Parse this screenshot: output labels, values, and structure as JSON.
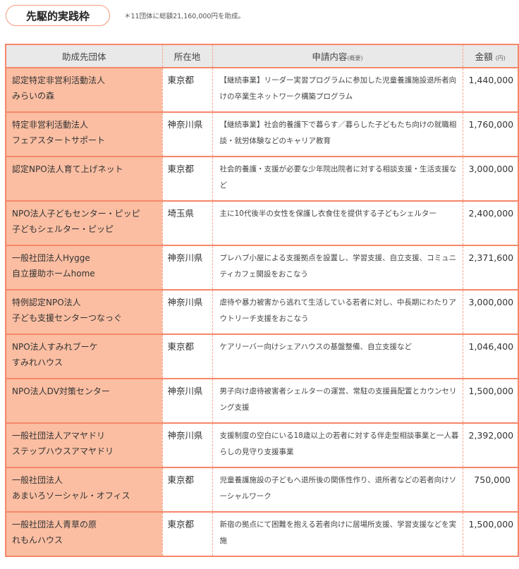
{
  "header": {
    "title": "先駆的実践枠",
    "note": "＊11団体に総額21,160,000円を助成。"
  },
  "colors": {
    "accent": "#f5876a",
    "org_bg": "#fbbea2",
    "header_bg": "#e9e9e9"
  },
  "table": {
    "columns": [
      "助成先団体",
      "所在地",
      "申請内容",
      "金額"
    ],
    "column_notes": {
      "2": "(概要)",
      "3": "(円)"
    },
    "rows": [
      {
        "org": [
          "認定特定非営利活動法人",
          "みらいの森"
        ],
        "location": "東京都",
        "description": "【継続事業】リーダー実習プログラムに参加した児童養護施設退所者向けの卒業生ネットワーク構築プログラム",
        "amount": "1,440,000"
      },
      {
        "org": [
          "特定非営利活動法人",
          "フェアスタートサポート"
        ],
        "location": "神奈川県",
        "description": "【継続事業】社会的養護下で暮らす／暮らした子どもたち向けの就職相談・就労体験などのキャリア教育",
        "amount": "1,760,000"
      },
      {
        "org": [
          "認定NPO法人育て上げネット"
        ],
        "location": "東京都",
        "description": "社会的養護・支援が必要な少年院出院者に対する相談支援・生活支援など",
        "amount": "3,000,000"
      },
      {
        "org": [
          "NPO法人子どもセンター・ピッピ",
          "子どもシェルター・ピッピ"
        ],
        "location": "埼玉県",
        "description": "主に10代後半の女性を保護し衣食住を提供する子どもシェルター",
        "amount": "2,400,000"
      },
      {
        "org": [
          "一般社団法人Hygge",
          "自立援助ホームhome"
        ],
        "location": "神奈川県",
        "description": "プレハブ小屋による支援拠点を設置し、学習支援、自立支援、コミュニティカフェ開設をおこなう",
        "amount": "2,371,600"
      },
      {
        "org": [
          "特例認定NPO法人",
          "子ども支援センターつなっぐ"
        ],
        "location": "神奈川県",
        "description": "虐待や暴力被害から逃れて生活している若者に対し、中長期にわたりアウトリーチ支援をおこなう",
        "amount": "3,000,000"
      },
      {
        "org": [
          "NPO法人すみれブーケ",
          "すみれハウス"
        ],
        "location": "東京都",
        "description": "ケアリーバー向けシェアハウスの基盤整備、自立支援など",
        "amount": "1,046,400"
      },
      {
        "org": [
          "NPO法人DV対策センター"
        ],
        "location": "神奈川県",
        "description": "男子向け虐待被害者シェルターの運営、常駐の支援員配置とカウンセリング支援",
        "amount": "1,500,000"
      },
      {
        "org": [
          "一般社団法人アマヤドリ",
          "ステップハウスアマヤドリ"
        ],
        "location": "神奈川県",
        "description": "支援制度の空白にいる18歳以上の若者に対する伴走型相談事業と一人暮らしの見守り支援事業",
        "amount": "2,392,000"
      },
      {
        "org": [
          "一般社団法人",
          "あまいろソーシャル・オフィス"
        ],
        "location": "東京都",
        "description": "児童養護施設の子どもへ退所後の関係性作り、退所者などの若者向けソーシャルワーク",
        "amount": "750,000"
      },
      {
        "org": [
          "一般社団法人青草の原",
          "れもんハウス"
        ],
        "location": "東京都",
        "description": "新宿の拠点にて困難を抱える若者向けに居場所支援、学習支援などを実施",
        "amount": "1,500,000"
      }
    ]
  }
}
